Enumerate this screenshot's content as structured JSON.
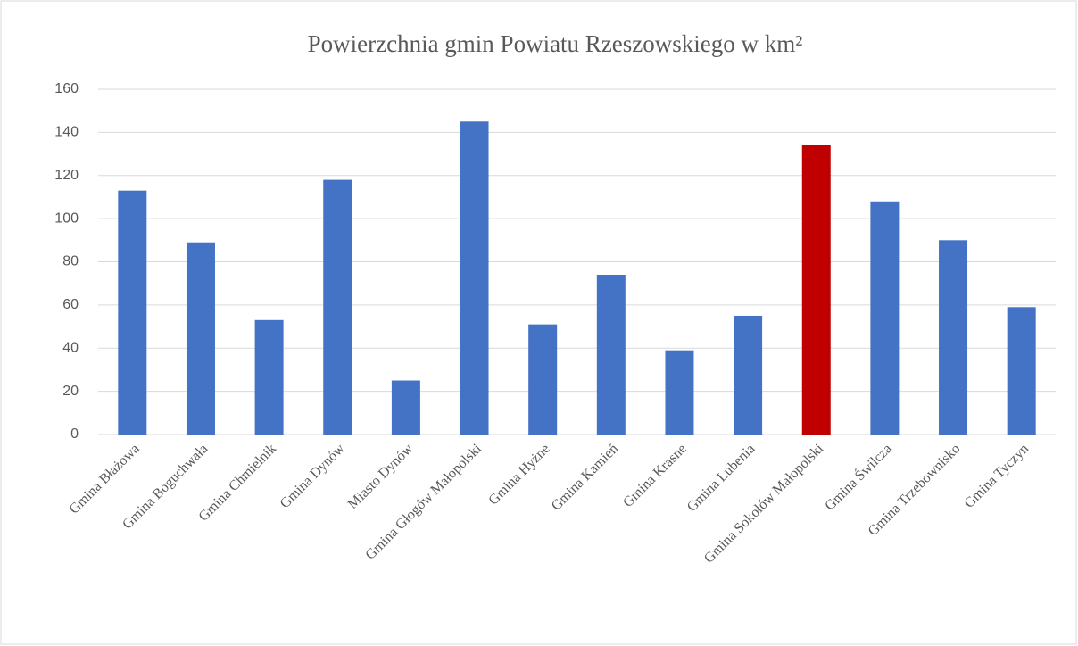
{
  "chart_data": {
    "type": "bar",
    "title": "Powierzchnia gmin Powiatu Rzeszowskiego w km²",
    "categories": [
      "Gmina Błażowa",
      "Gmina Boguchwała",
      "Gmina Chmielnik",
      "Gmina Dynów",
      "Miasto Dynów",
      "Gmina Głogów Małopolski",
      "Gmina Hyżne",
      "Gmina Kamień",
      "Gmina Krasne",
      "Gmina Lubenia",
      "Gmina Sokołów Małopolski",
      "Gmina Świlcza",
      "Gmina Trzebownisko",
      "Gmina Tyczyn"
    ],
    "values": [
      113,
      89,
      53,
      118,
      25,
      145,
      51,
      74,
      39,
      55,
      134,
      108,
      90,
      59
    ],
    "colors": [
      "#4472c4",
      "#4472c4",
      "#4472c4",
      "#4472c4",
      "#4472c4",
      "#4472c4",
      "#4472c4",
      "#4472c4",
      "#4472c4",
      "#4472c4",
      "#c00000",
      "#4472c4",
      "#4472c4",
      "#4472c4"
    ],
    "ylim": [
      0,
      160
    ],
    "yticks": [
      0,
      20,
      40,
      60,
      80,
      100,
      120,
      140,
      160
    ],
    "grid": true
  }
}
